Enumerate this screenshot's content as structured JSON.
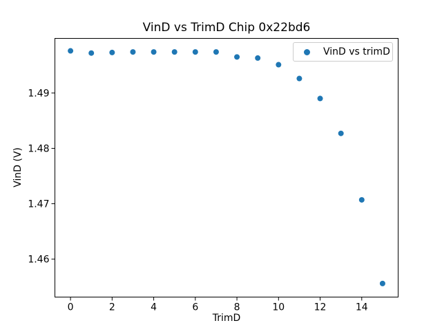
{
  "chart_data": {
    "type": "scatter",
    "title": "VinD vs TrimD Chip 0x22bd6",
    "xlabel": "TrimD",
    "ylabel": "VinD (V)",
    "legend_label": "VinD vs trimD",
    "legend_position": "upper right",
    "marker_color": "#1f77b4",
    "grid": false,
    "x": [
      0,
      1,
      2,
      3,
      4,
      5,
      6,
      7,
      8,
      9,
      10,
      11,
      12,
      13,
      14,
      15
    ],
    "y": [
      1.4976,
      1.4972,
      1.4973,
      1.4974,
      1.4974,
      1.4974,
      1.4974,
      1.4974,
      1.4965,
      1.4963,
      1.4951,
      1.4926,
      1.489,
      1.4827,
      1.4707,
      1.4556
    ],
    "xlim": [
      -0.75,
      15.75
    ],
    "ylim": [
      1.45315,
      1.49985
    ],
    "xticks": [
      0,
      2,
      4,
      6,
      8,
      10,
      12,
      14
    ],
    "xtick_labels": [
      "0",
      "2",
      "4",
      "6",
      "8",
      "10",
      "12",
      "14"
    ],
    "yticks": [
      1.46,
      1.47,
      1.48,
      1.49
    ],
    "ytick_labels": [
      "1.46",
      "1.47",
      "1.48",
      "1.49"
    ]
  }
}
